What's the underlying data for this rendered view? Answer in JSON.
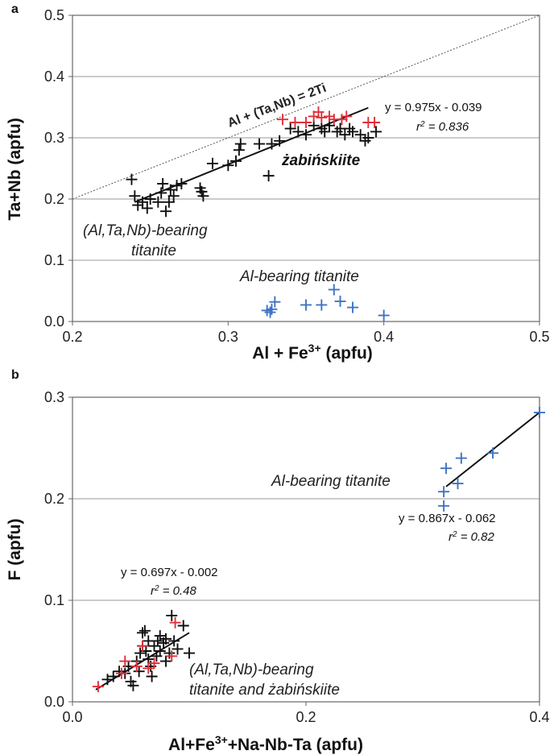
{
  "colors": {
    "black": "#111111",
    "red": "#e0303a",
    "blue": "#3f74c4",
    "grid": "#9a9a9a",
    "axis": "#666666"
  },
  "chart_data": [
    {
      "type": "scatter",
      "panel_label": "a",
      "xlabel": "Al + Fe",
      "xlabel_sup": "3+",
      "xlabel_tail": " (apfu)",
      "ylabel": "Ta+Nb (apfu)",
      "xlim": [
        0.2,
        0.5
      ],
      "ylim": [
        0.0,
        0.5
      ],
      "xticks": [
        "0.2",
        "0.3",
        "0.4",
        "0.5"
      ],
      "yticks": [
        "0.0",
        "0.1",
        "0.2",
        "0.3",
        "0.4",
        "0.5"
      ],
      "grid": "horizontal",
      "reference_line": {
        "label": "Al + (Ta,Nb) = 2Ti",
        "from": [
          0.2,
          0.2
        ],
        "to": [
          0.5,
          0.5
        ]
      },
      "fit": {
        "equation": "y = 0.975x - 0.039",
        "r2_label": "r",
        "r2_value": " = 0.836",
        "from": [
          0.24,
          0.195
        ],
        "to": [
          0.39,
          0.349
        ]
      },
      "annotations": {
        "zab": "żabińskiite",
        "altanb_1": "(Al,Ta,Nb)-bearing",
        "altanb_2": "titanite",
        "albear": "Al-bearing titanite"
      },
      "series": [
        {
          "color": "black",
          "points": [
            [
              0.238,
              0.232
            ],
            [
              0.24,
              0.205
            ],
            [
              0.242,
              0.19
            ],
            [
              0.245,
              0.195
            ],
            [
              0.248,
              0.185
            ],
            [
              0.25,
              0.2
            ],
            [
              0.255,
              0.195
            ],
            [
              0.257,
              0.21
            ],
            [
              0.258,
              0.225
            ],
            [
              0.26,
              0.18
            ],
            [
              0.262,
              0.195
            ],
            [
              0.263,
              0.215
            ],
            [
              0.265,
              0.205
            ],
            [
              0.267,
              0.222
            ],
            [
              0.27,
              0.225
            ],
            [
              0.282,
              0.218
            ],
            [
              0.283,
              0.212
            ],
            [
              0.284,
              0.205
            ],
            [
              0.29,
              0.258
            ],
            [
              0.3,
              0.255
            ],
            [
              0.305,
              0.262
            ],
            [
              0.307,
              0.28
            ],
            [
              0.308,
              0.29
            ],
            [
              0.32,
              0.29
            ],
            [
              0.326,
              0.238
            ],
            [
              0.328,
              0.29
            ],
            [
              0.333,
              0.295
            ],
            [
              0.34,
              0.315
            ],
            [
              0.345,
              0.31
            ],
            [
              0.35,
              0.305
            ],
            [
              0.355,
              0.32
            ],
            [
              0.36,
              0.315
            ],
            [
              0.362,
              0.31
            ],
            [
              0.365,
              0.32
            ],
            [
              0.37,
              0.31
            ],
            [
              0.372,
              0.315
            ],
            [
              0.375,
              0.305
            ],
            [
              0.378,
              0.315
            ],
            [
              0.38,
              0.31
            ],
            [
              0.385,
              0.305
            ],
            [
              0.388,
              0.295
            ],
            [
              0.39,
              0.3
            ],
            [
              0.395,
              0.31
            ]
          ]
        },
        {
          "color": "red",
          "points": [
            [
              0.335,
              0.33
            ],
            [
              0.343,
              0.325
            ],
            [
              0.35,
              0.325
            ],
            [
              0.355,
              0.335
            ],
            [
              0.358,
              0.342
            ],
            [
              0.36,
              0.333
            ],
            [
              0.365,
              0.335
            ],
            [
              0.368,
              0.33
            ],
            [
              0.373,
              0.33
            ],
            [
              0.376,
              0.335
            ],
            [
              0.39,
              0.325
            ],
            [
              0.394,
              0.325
            ]
          ]
        },
        {
          "color": "blue",
          "points": [
            [
              0.325,
              0.018
            ],
            [
              0.327,
              0.015
            ],
            [
              0.328,
              0.02
            ],
            [
              0.33,
              0.032
            ],
            [
              0.35,
              0.027
            ],
            [
              0.36,
              0.027
            ],
            [
              0.368,
              0.052
            ],
            [
              0.372,
              0.033
            ],
            [
              0.38,
              0.023
            ],
            [
              0.4,
              0.01
            ]
          ]
        }
      ]
    },
    {
      "type": "scatter",
      "panel_label": "b",
      "xlabel": "Al+Fe",
      "xlabel_sup": "3+",
      "xlabel_tail": "+Na-Nb-Ta (apfu)",
      "ylabel": "F (apfu)",
      "xlim": [
        0.0,
        0.4
      ],
      "ylim": [
        0.0,
        0.3
      ],
      "xticks": [
        "0.0",
        "0.2",
        "0.4"
      ],
      "yticks": [
        "0.0",
        "0.1",
        "0.2",
        "0.3"
      ],
      "grid": "horizontal",
      "fits": [
        {
          "equation": "y = 0.697x - 0.002",
          "r2_label": "r",
          "r2_value": " = 0.48",
          "from": [
            0.02,
            0.012
          ],
          "to": [
            0.1,
            0.068
          ]
        },
        {
          "equation": "y = 0.867x - 0.062",
          "r2_label": "r",
          "r2_value": " = 0.82",
          "from": [
            0.32,
            0.212
          ],
          "to": [
            0.4,
            0.285
          ]
        }
      ],
      "annotations": {
        "albear": "Al-bearing titanite",
        "mix_1": "(Al,Ta,Nb)-bearing",
        "mix_2": "titanite and żabińskiite"
      },
      "series": [
        {
          "color": "black",
          "points": [
            [
              0.03,
              0.022
            ],
            [
              0.035,
              0.025
            ],
            [
              0.04,
              0.03
            ],
            [
              0.045,
              0.028
            ],
            [
              0.048,
              0.035
            ],
            [
              0.05,
              0.02
            ],
            [
              0.052,
              0.016
            ],
            [
              0.055,
              0.04
            ],
            [
              0.057,
              0.03
            ],
            [
              0.058,
              0.048
            ],
            [
              0.06,
              0.068
            ],
            [
              0.06,
              0.055
            ],
            [
              0.062,
              0.07
            ],
            [
              0.063,
              0.05
            ],
            [
              0.065,
              0.06
            ],
            [
              0.065,
              0.042
            ],
            [
              0.067,
              0.035
            ],
            [
              0.068,
              0.025
            ],
            [
              0.07,
              0.055
            ],
            [
              0.072,
              0.045
            ],
            [
              0.073,
              0.06
            ],
            [
              0.075,
              0.05
            ],
            [
              0.075,
              0.065
            ],
            [
              0.078,
              0.058
            ],
            [
              0.08,
              0.062
            ],
            [
              0.08,
              0.04
            ],
            [
              0.083,
              0.048
            ],
            [
              0.085,
              0.085
            ],
            [
              0.087,
              0.06
            ],
            [
              0.09,
              0.052
            ],
            [
              0.095,
              0.075
            ],
            [
              0.1,
              0.048
            ]
          ]
        },
        {
          "color": "red",
          "points": [
            [
              0.022,
              0.015
            ],
            [
              0.042,
              0.028
            ],
            [
              0.045,
              0.04
            ],
            [
              0.055,
              0.035
            ],
            [
              0.06,
              0.055
            ],
            [
              0.065,
              0.033
            ],
            [
              0.07,
              0.038
            ],
            [
              0.085,
              0.045
            ],
            [
              0.088,
              0.078
            ]
          ]
        },
        {
          "color": "blue",
          "points": [
            [
              0.318,
              0.207
            ],
            [
              0.318,
              0.193
            ],
            [
              0.32,
              0.23
            ],
            [
              0.33,
              0.215
            ],
            [
              0.333,
              0.24
            ],
            [
              0.36,
              0.245
            ],
            [
              0.4,
              0.285
            ]
          ]
        }
      ]
    }
  ]
}
